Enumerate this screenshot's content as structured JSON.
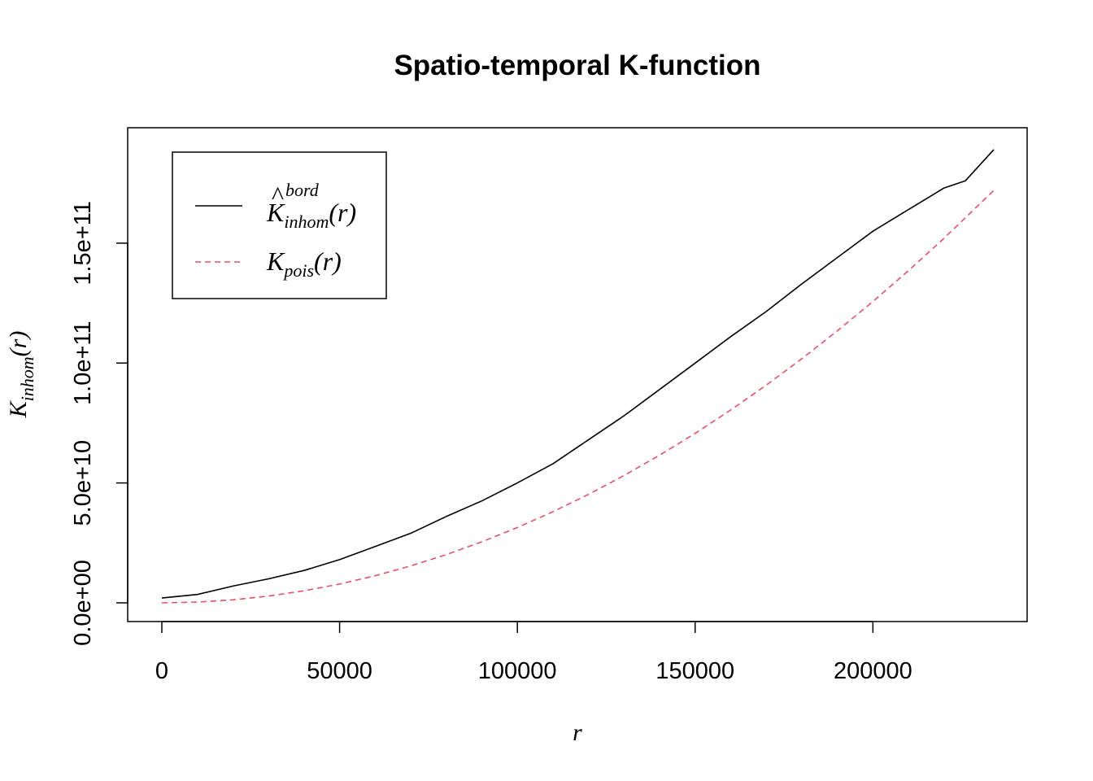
{
  "chart_data": {
    "type": "line",
    "title": "Spatio-temporal K-function",
    "xlabel": "r",
    "ylabel": {
      "main": "K",
      "sub": "inhom",
      "arg": "(r)"
    },
    "xlim": [
      0,
      234000
    ],
    "ylim": [
      0,
      190000000000
    ],
    "x_ticks": [
      0,
      50000,
      100000,
      150000,
      200000
    ],
    "x_tick_labels": [
      "0",
      "50000",
      "100000",
      "150000",
      "200000"
    ],
    "y_ticks": [
      0,
      50000000000,
      100000000000,
      150000000000
    ],
    "y_tick_labels": [
      "0.0e+00",
      "5.0e+10",
      "1.0e+11",
      "1.5e+11"
    ],
    "grid": false,
    "legend_position": "top-left",
    "series": [
      {
        "name": "K̂ bord inhom (r)",
        "legend": {
          "main": "K",
          "sup": "bord",
          "sub": "inhom",
          "arg": "(r)"
        },
        "color": "#000000",
        "dash": "solid",
        "x": [
          0,
          10000,
          20000,
          30000,
          40000,
          50000,
          60000,
          70000,
          80000,
          90000,
          100000,
          110000,
          120000,
          130000,
          140000,
          150000,
          160000,
          170000,
          180000,
          190000,
          200000,
          210000,
          220000,
          226000,
          234000
        ],
        "y": [
          2000000000,
          3500000000,
          7000000000,
          10000000000,
          13500000000,
          18000000000,
          23500000000,
          29000000000,
          36000000000,
          42500000000,
          50000000000,
          58000000000,
          68000000000,
          78000000000,
          89000000000,
          100000000000,
          111000000000,
          121500000000,
          133000000000,
          144000000000,
          155000000000,
          164000000000,
          173000000000,
          176000000000,
          189000000000
        ]
      },
      {
        "name": "K pois (r)",
        "legend": {
          "main": "K",
          "sub": "pois",
          "arg": "(r)"
        },
        "color": "#DF536B",
        "dash": "dashed",
        "x": [
          0,
          10000,
          20000,
          30000,
          40000,
          50000,
          60000,
          70000,
          80000,
          90000,
          100000,
          110000,
          120000,
          130000,
          140000,
          150000,
          160000,
          170000,
          180000,
          190000,
          200000,
          210000,
          220000,
          234000
        ],
        "y": [
          0,
          314000000,
          1257000000,
          2827000000,
          5027000000,
          7854000000,
          11310000000,
          15390000000,
          20110000000,
          25450000000,
          31420000000,
          38010000000,
          45240000000,
          53090000000,
          61580000000,
          70690000000,
          80420000000,
          90790000000,
          101790000000,
          113410000000,
          125660000000,
          138540000000,
          152050000000,
          172000000000
        ]
      }
    ]
  }
}
